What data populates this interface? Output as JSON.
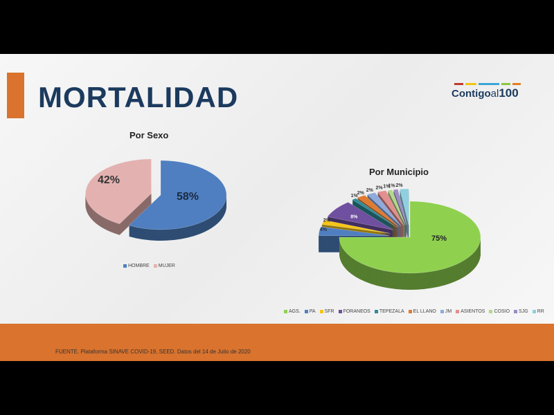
{
  "title": "MORTALIDAD",
  "logo": {
    "text": "Contigo",
    "text_al": "al",
    "text_num": "100",
    "stripe_colors": [
      "#c0392b",
      "#f1c40f",
      "#3aa6d8",
      "#8cc63f",
      "#e67e22"
    ]
  },
  "source": "FUENTE. Plataforma SINAVE COVID-19, SEED. Datos del 14 de Julio de 2020",
  "chart_data": [
    {
      "type": "pie",
      "title": "Por Sexo",
      "categories": [
        "HOMBRE",
        "MUJER"
      ],
      "values": [
        58,
        42
      ],
      "labels": [
        "58%",
        "42%"
      ],
      "colors": [
        "#4f7fc0",
        "#e3b2b0"
      ],
      "legend": "bottom",
      "exploded": [
        "MUJER"
      ]
    },
    {
      "type": "pie",
      "title": "Por Municipio",
      "categories": [
        "AGS.",
        "PA",
        "SFR",
        "FORANEOS",
        "TEPEZALA",
        "EL LLANO",
        "JM",
        "ASIENTOS",
        "COSIO",
        "SJG",
        "RR"
      ],
      "values": [
        75,
        4,
        2,
        8,
        1,
        2,
        2,
        2,
        1,
        1,
        2
      ],
      "labels": [
        "75%",
        "4%",
        "2%",
        "8%",
        "1%",
        "2%",
        "2%",
        "2%",
        "1%",
        "1%",
        "2%"
      ],
      "colors": [
        "#8fd14f",
        "#4f7fc0",
        "#f5c518",
        "#6f4f9f",
        "#2c8c99",
        "#e07b30",
        "#8faadc",
        "#e38f8f",
        "#b4d88a",
        "#9b8cc4",
        "#8ecfe0"
      ],
      "legend": "bottom",
      "exploded": [
        "PA",
        "SFR",
        "FORANEOS",
        "TEPEZALA",
        "EL LLANO",
        "JM",
        "ASIENTOS",
        "COSIO",
        "SJG",
        "RR"
      ]
    }
  ]
}
